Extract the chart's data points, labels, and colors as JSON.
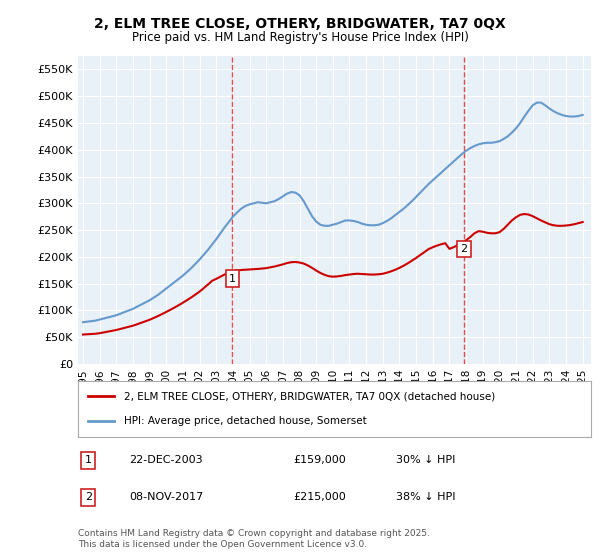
{
  "title": "2, ELM TREE CLOSE, OTHERY, BRIDGWATER, TA7 0QX",
  "subtitle": "Price paid vs. HM Land Registry's House Price Index (HPI)",
  "ylabel_ticks": [
    "£0",
    "£50K",
    "£100K",
    "£150K",
    "£200K",
    "£250K",
    "£300K",
    "£350K",
    "£400K",
    "£450K",
    "£500K",
    "£550K"
  ],
  "ytick_values": [
    0,
    50000,
    100000,
    150000,
    200000,
    250000,
    300000,
    350000,
    400000,
    450000,
    500000,
    550000
  ],
  "ylim": [
    0,
    575000
  ],
  "xlim_start": 1995.0,
  "xlim_end": 2025.5,
  "xticks": [
    1995,
    1996,
    1997,
    1998,
    1999,
    2000,
    2001,
    2002,
    2003,
    2004,
    2005,
    2006,
    2007,
    2008,
    2009,
    2010,
    2011,
    2012,
    2013,
    2014,
    2015,
    2016,
    2017,
    2018,
    2019,
    2020,
    2021,
    2022,
    2023,
    2024,
    2025
  ],
  "sale1_x": 2003.97,
  "sale1_y": 159000,
  "sale1_label": "1",
  "sale1_date": "22-DEC-2003",
  "sale1_price": "£159,000",
  "sale1_hpi": "30% ↓ HPI",
  "sale2_x": 2017.86,
  "sale2_y": 215000,
  "sale2_label": "2",
  "sale2_date": "08-NOV-2017",
  "sale2_price": "£215,000",
  "sale2_hpi": "38% ↓ HPI",
  "vline_color": "#e05050",
  "vline_style": "--",
  "property_line_color": "#cc0000",
  "hpi_line_color": "#6699cc",
  "background_color": "#e8f0f8",
  "plot_bg_color": "#e8f0f8",
  "legend_label_property": "2, ELM TREE CLOSE, OTHERY, BRIDGWATER, TA7 0QX (detached house)",
  "legend_label_hpi": "HPI: Average price, detached house, Somerset",
  "footer_text": "Contains HM Land Registry data © Crown copyright and database right 2025.\nThis data is licensed under the Open Government Licence v3.0.",
  "hpi_years": [
    1995,
    1995.25,
    1995.5,
    1995.75,
    1996,
    1996.25,
    1996.5,
    1996.75,
    1997,
    1997.25,
    1997.5,
    1997.75,
    1998,
    1998.25,
    1998.5,
    1998.75,
    1999,
    1999.25,
    1999.5,
    1999.75,
    2000,
    2000.25,
    2000.5,
    2000.75,
    2001,
    2001.25,
    2001.5,
    2001.75,
    2002,
    2002.25,
    2002.5,
    2002.75,
    2003,
    2003.25,
    2003.5,
    2003.75,
    2004,
    2004.25,
    2004.5,
    2004.75,
    2005,
    2005.25,
    2005.5,
    2005.75,
    2006,
    2006.25,
    2006.5,
    2006.75,
    2007,
    2007.25,
    2007.5,
    2007.75,
    2008,
    2008.25,
    2008.5,
    2008.75,
    2009,
    2009.25,
    2009.5,
    2009.75,
    2010,
    2010.25,
    2010.5,
    2010.75,
    2011,
    2011.25,
    2011.5,
    2011.75,
    2012,
    2012.25,
    2012.5,
    2012.75,
    2013,
    2013.25,
    2013.5,
    2013.75,
    2014,
    2014.25,
    2014.5,
    2014.75,
    2015,
    2015.25,
    2015.5,
    2015.75,
    2016,
    2016.25,
    2016.5,
    2016.75,
    2017,
    2017.25,
    2017.5,
    2017.75,
    2018,
    2018.25,
    2018.5,
    2018.75,
    2019,
    2019.25,
    2019.5,
    2019.75,
    2020,
    2020.25,
    2020.5,
    2020.75,
    2021,
    2021.25,
    2021.5,
    2021.75,
    2022,
    2022.25,
    2022.5,
    2022.75,
    2023,
    2023.25,
    2023.5,
    2023.75,
    2024,
    2024.25,
    2024.5,
    2024.75,
    2025
  ],
  "hpi_values": [
    78000,
    79000,
    80000,
    81000,
    83000,
    85000,
    87000,
    89000,
    91000,
    94000,
    97000,
    100000,
    103000,
    107000,
    111000,
    115000,
    119000,
    124000,
    129000,
    135000,
    141000,
    147000,
    153000,
    159000,
    165000,
    172000,
    179000,
    187000,
    195000,
    204000,
    213000,
    223000,
    233000,
    244000,
    255000,
    265000,
    275000,
    283000,
    290000,
    295000,
    298000,
    300000,
    302000,
    301000,
    300000,
    302000,
    304000,
    308000,
    313000,
    318000,
    321000,
    320000,
    315000,
    304000,
    290000,
    276000,
    266000,
    260000,
    258000,
    258000,
    260000,
    262000,
    265000,
    268000,
    268000,
    267000,
    265000,
    262000,
    260000,
    259000,
    259000,
    260000,
    263000,
    267000,
    272000,
    278000,
    284000,
    290000,
    297000,
    304000,
    312000,
    320000,
    328000,
    336000,
    343000,
    350000,
    357000,
    364000,
    371000,
    378000,
    385000,
    392000,
    398000,
    403000,
    407000,
    410000,
    412000,
    413000,
    413000,
    414000,
    416000,
    420000,
    425000,
    432000,
    440000,
    450000,
    462000,
    473000,
    483000,
    488000,
    488000,
    483000,
    477000,
    472000,
    468000,
    465000,
    463000,
    462000,
    462000,
    463000,
    465000
  ],
  "property_years": [
    1995,
    1995.25,
    1995.5,
    1995.75,
    1996,
    1996.25,
    1996.5,
    1996.75,
    1997,
    1997.25,
    1997.5,
    1997.75,
    1998,
    1998.25,
    1998.5,
    1998.75,
    1999,
    1999.25,
    1999.5,
    1999.75,
    2000,
    2000.25,
    2000.5,
    2000.75,
    2001,
    2001.25,
    2001.5,
    2001.75,
    2002,
    2002.25,
    2002.5,
    2002.75,
    2003,
    2003.25,
    2003.5,
    2003.75,
    2004,
    2004.25,
    2004.5,
    2004.75,
    2005,
    2005.25,
    2005.5,
    2005.75,
    2006,
    2006.25,
    2006.5,
    2006.75,
    2007,
    2007.25,
    2007.5,
    2007.75,
    2008,
    2008.25,
    2008.5,
    2008.75,
    2009,
    2009.25,
    2009.5,
    2009.75,
    2010,
    2010.25,
    2010.5,
    2010.75,
    2011,
    2011.25,
    2011.5,
    2011.75,
    2012,
    2012.25,
    2012.5,
    2012.75,
    2013,
    2013.25,
    2013.5,
    2013.75,
    2014,
    2014.25,
    2014.5,
    2014.75,
    2015,
    2015.25,
    2015.5,
    2015.75,
    2016,
    2016.25,
    2016.5,
    2016.75,
    2017,
    2017.25,
    2017.5,
    2017.75,
    2018,
    2018.25,
    2018.5,
    2018.75,
    2019,
    2019.25,
    2019.5,
    2019.75,
    2020,
    2020.25,
    2020.5,
    2020.75,
    2021,
    2021.25,
    2021.5,
    2021.75,
    2022,
    2022.25,
    2022.5,
    2022.75,
    2023,
    2023.25,
    2023.5,
    2023.75,
    2024,
    2024.25,
    2024.5,
    2024.75,
    2025
  ],
  "property_values": [
    55000,
    55500,
    56000,
    56500,
    57500,
    59000,
    60500,
    62000,
    63500,
    65500,
    67500,
    69500,
    71500,
    74200,
    77000,
    79800,
    82600,
    86000,
    89500,
    93300,
    97200,
    101300,
    105500,
    109900,
    114500,
    119300,
    124300,
    129700,
    135200,
    141700,
    148300,
    155300,
    159000,
    163000,
    167000,
    170500,
    173000,
    174500,
    175500,
    176000,
    176500,
    177000,
    177500,
    178200,
    179000,
    180500,
    182000,
    184000,
    186000,
    188500,
    190000,
    190500,
    189500,
    187500,
    184000,
    179500,
    174500,
    170000,
    166500,
    164000,
    163000,
    163500,
    164500,
    166000,
    167000,
    168000,
    168500,
    168000,
    167500,
    167000,
    167000,
    167500,
    168500,
    170500,
    173000,
    176000,
    179500,
    183500,
    188000,
    193000,
    198000,
    203500,
    209000,
    214500,
    218000,
    221000,
    223500,
    225500,
    215000,
    218000,
    222000,
    226000,
    231000,
    237000,
    244000,
    248000,
    247000,
    245000,
    244000,
    244000,
    246000,
    252000,
    260000,
    268000,
    274000,
    278500,
    280000,
    279000,
    276000,
    272000,
    268000,
    264500,
    261000,
    259000,
    258000,
    258000,
    258500,
    259500,
    261000,
    263000,
    265000
  ]
}
